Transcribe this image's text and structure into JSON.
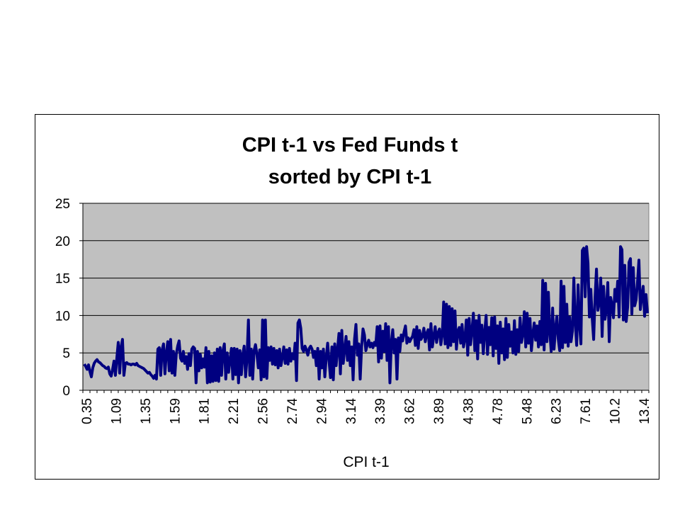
{
  "chart_data": {
    "type": "line",
    "title": [
      "CPI t-1 vs Fed Funds t",
      "sorted by CPI t-1"
    ],
    "xlabel": "CPI t-1",
    "ylabel": "",
    "ylim": [
      0,
      25
    ],
    "yticks": [
      0,
      5,
      10,
      15,
      20,
      25
    ],
    "x_tick_labels": [
      "0.35",
      "1.09",
      "1.35",
      "1.59",
      "1.81",
      "2.21",
      "2.56",
      "2.74",
      "2.94",
      "3.14",
      "3.39",
      "3.62",
      "3.89",
      "4.38",
      "4.78",
      "5.48",
      "6.23",
      "7.61",
      "10.2",
      "13.4"
    ],
    "grid": {
      "horizontal": true,
      "vertical": false
    },
    "legend": "none",
    "colors": {
      "plot_area": "#c0c0c0",
      "series": "#000080",
      "gridline": "#000000"
    },
    "series": [
      {
        "values": [
          3.5,
          3.2,
          2.8,
          3.4,
          2.5,
          1.8,
          3.0,
          3.6,
          3.9,
          4.1,
          3.8,
          3.7,
          3.5,
          3.3,
          3.2,
          3.0,
          2.9,
          3.1,
          2.2,
          1.9,
          2.8,
          3.9,
          2.0,
          4.3,
          6.4,
          2.3,
          5.8,
          6.8,
          2.0,
          3.6,
          3.7,
          3.5,
          3.5,
          3.4,
          3.5,
          3.5,
          3.4,
          3.6,
          3.3,
          3.2,
          3.1,
          3.0,
          2.9,
          2.7,
          2.5,
          2.3,
          2.4,
          2.1,
          1.9,
          1.6,
          2.0,
          1.5,
          5.5,
          5.7,
          2.0,
          5.4,
          6.2,
          2.2,
          5.0,
          6.5,
          2.6,
          6.8,
          2.3,
          5.2,
          2.0,
          4.8,
          5.9,
          6.6,
          4.3,
          3.9,
          5.2,
          3.6,
          4.5,
          2.8,
          4.9,
          3.3,
          5.5,
          5.8,
          5.6,
          1.0,
          5.2,
          2.6,
          4.8,
          3.0,
          4.2,
          3.1,
          5.7,
          1.0,
          5.2,
          1.1,
          4.6,
          1.2,
          5.0,
          1.3,
          5.5,
          1.2,
          5.7,
          2.0,
          5.3,
          6.2,
          1.5,
          5.0,
          2.4,
          4.1,
          5.6,
          1.5,
          5.6,
          2.1,
          5.5,
          1.0,
          5.3,
          2.1,
          4.8,
          5.9,
          1.8,
          4.3,
          9.4,
          2.0,
          5.5,
          1.5,
          5.3,
          6.1,
          4.8,
          3.0,
          5.4,
          1.4,
          9.4,
          1.8,
          9.4,
          1.6,
          5.7,
          4.0,
          5.8,
          3.5,
          5.6,
          3.4,
          5.3,
          3.0,
          5.5,
          3.3,
          4.4,
          5.8,
          3.6,
          5.4,
          3.5,
          5.6,
          3.9,
          4.9,
          4.2,
          6.3,
          1.3,
          9.0,
          9.4,
          8.3,
          5.6,
          5.2,
          5.9,
          5.4,
          4.7,
          5.6,
          5.9,
          5.5,
          4.4,
          5.2,
          3.3,
          5.6,
          1.5,
          5.2,
          3.0,
          5.5,
          1.8,
          4.4,
          6.3,
          3.9,
          1.7,
          5.8,
          1.4,
          6.2,
          3.3,
          5.5,
          7.6,
          2.2,
          8.0,
          3.6,
          5.4,
          7.2,
          4.0,
          6.5,
          3.3,
          5.8,
          1.4,
          6.8,
          8.8,
          4.7,
          6.2,
          1.5,
          5.8,
          8.2,
          7.4,
          5.3,
          6.1,
          6.7,
          5.8,
          6.3,
          5.7,
          6.4,
          6.0,
          8.5,
          3.8,
          8.6,
          4.3,
          7.9,
          5.2,
          8.9,
          4.0,
          8.5,
          1.0,
          6.4,
          8.1,
          5.0,
          6.8,
          1.5,
          7.0,
          5.2,
          7.4,
          6.6,
          7.8,
          8.6,
          6.3,
          7.0,
          6.5,
          6.9,
          7.2,
          8.1,
          6.0,
          8.5,
          5.6,
          8.0,
          6.8,
          7.2,
          8.3,
          6.5,
          7.6,
          8.1,
          5.4,
          8.9,
          5.8,
          7.2,
          8.5,
          6.4,
          7.7,
          8.2,
          6.1,
          7.4,
          11.8,
          6.2,
          11.5,
          5.7,
          11.2,
          6.0,
          10.9,
          6.5,
          10.6,
          5.5,
          7.9,
          8.4,
          6.3,
          8.8,
          5.8,
          6.9,
          9.4,
          4.7,
          9.6,
          6.1,
          8.0,
          10.3,
          5.3,
          9.3,
          4.2,
          10.0,
          6.4,
          8.7,
          4.9,
          7.8,
          10.0,
          4.8,
          8.4,
          6.1,
          9.7,
          4.6,
          9.8,
          5.6,
          8.6,
          3.6,
          9.1,
          5.0,
          8.2,
          4.1,
          9.6,
          4.4,
          8.8,
          5.9,
          7.8,
          5.0,
          9.3,
          4.8,
          8.1,
          5.2,
          9.7,
          6.4,
          7.5,
          10.5,
          5.8,
          10.3,
          6.3,
          9.6,
          5.3,
          7.5,
          9.0,
          6.7,
          8.6,
          5.8,
          9.2,
          6.1,
          14.7,
          5.4,
          14.3,
          6.5,
          13.1,
          7.8,
          5.2,
          11.0,
          5.5,
          8.2,
          9.9,
          6.8,
          5.3,
          14.6,
          5.7,
          13.9,
          6.4,
          11.5,
          5.9,
          9.8,
          6.5,
          7.9,
          15.0,
          9.0,
          6.0,
          14.1,
          8.8,
          6.2,
          18.7,
          19.0,
          12.5,
          19.2,
          17.0,
          9.8,
          13.5,
          9.6,
          6.8,
          12.4,
          16.2,
          10.7,
          11.8,
          15.0,
          7.2,
          13.9,
          9.5,
          10.9,
          14.4,
          6.5,
          12.4,
          11.4,
          9.7,
          13.5,
          11.9,
          14.6,
          9.8,
          19.2,
          18.8,
          9.4,
          16.7,
          9.2,
          11.1,
          17.1,
          17.6,
          10.2,
          16.4,
          11.3,
          12.1,
          14.5,
          17.4,
          10.8,
          12.6,
          13.9,
          9.9,
          12.8,
          10.3
        ]
      }
    ]
  }
}
